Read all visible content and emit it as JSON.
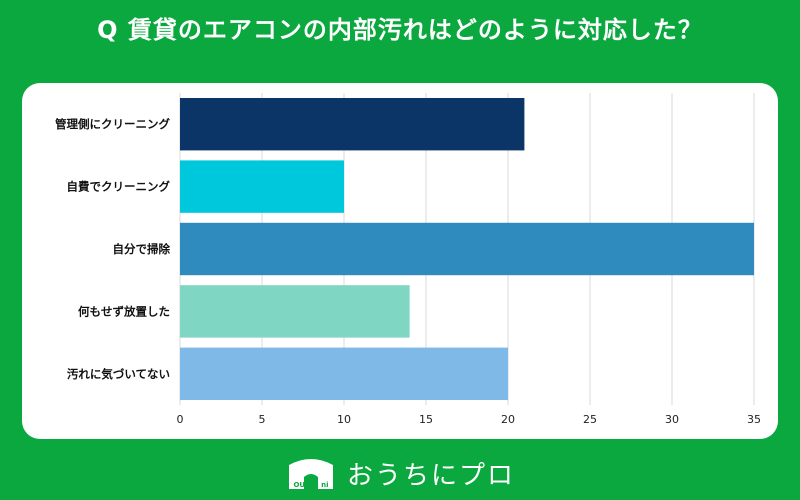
{
  "title": "Q 賃貸のエアコンの内部汚れはどのように対応した？",
  "brand": {
    "logo_subtext": "OUCHI ni PRO",
    "name": "おうちにプロ"
  },
  "colors": {
    "background": "#0aa83f",
    "card": "#ffffff",
    "grid": "#d9d9d9"
  },
  "chart_data": {
    "type": "bar",
    "orientation": "horizontal",
    "title": "",
    "xlabel": "",
    "ylabel": "",
    "categories": [
      "管理側にクリーニング",
      "自費でクリーニング",
      "自分で掃除",
      "何もせず放置した",
      "汚れに気づいてない"
    ],
    "values": [
      21,
      10,
      35,
      14,
      20
    ],
    "colors": [
      "#0b3566",
      "#00c8dc",
      "#2f8bbd",
      "#7ed6c3",
      "#7fb9e8"
    ],
    "xlim": [
      0,
      35
    ],
    "xticks": [
      0,
      5,
      10,
      15,
      20,
      25,
      30,
      35
    ],
    "grid": true,
    "legend": "none"
  }
}
